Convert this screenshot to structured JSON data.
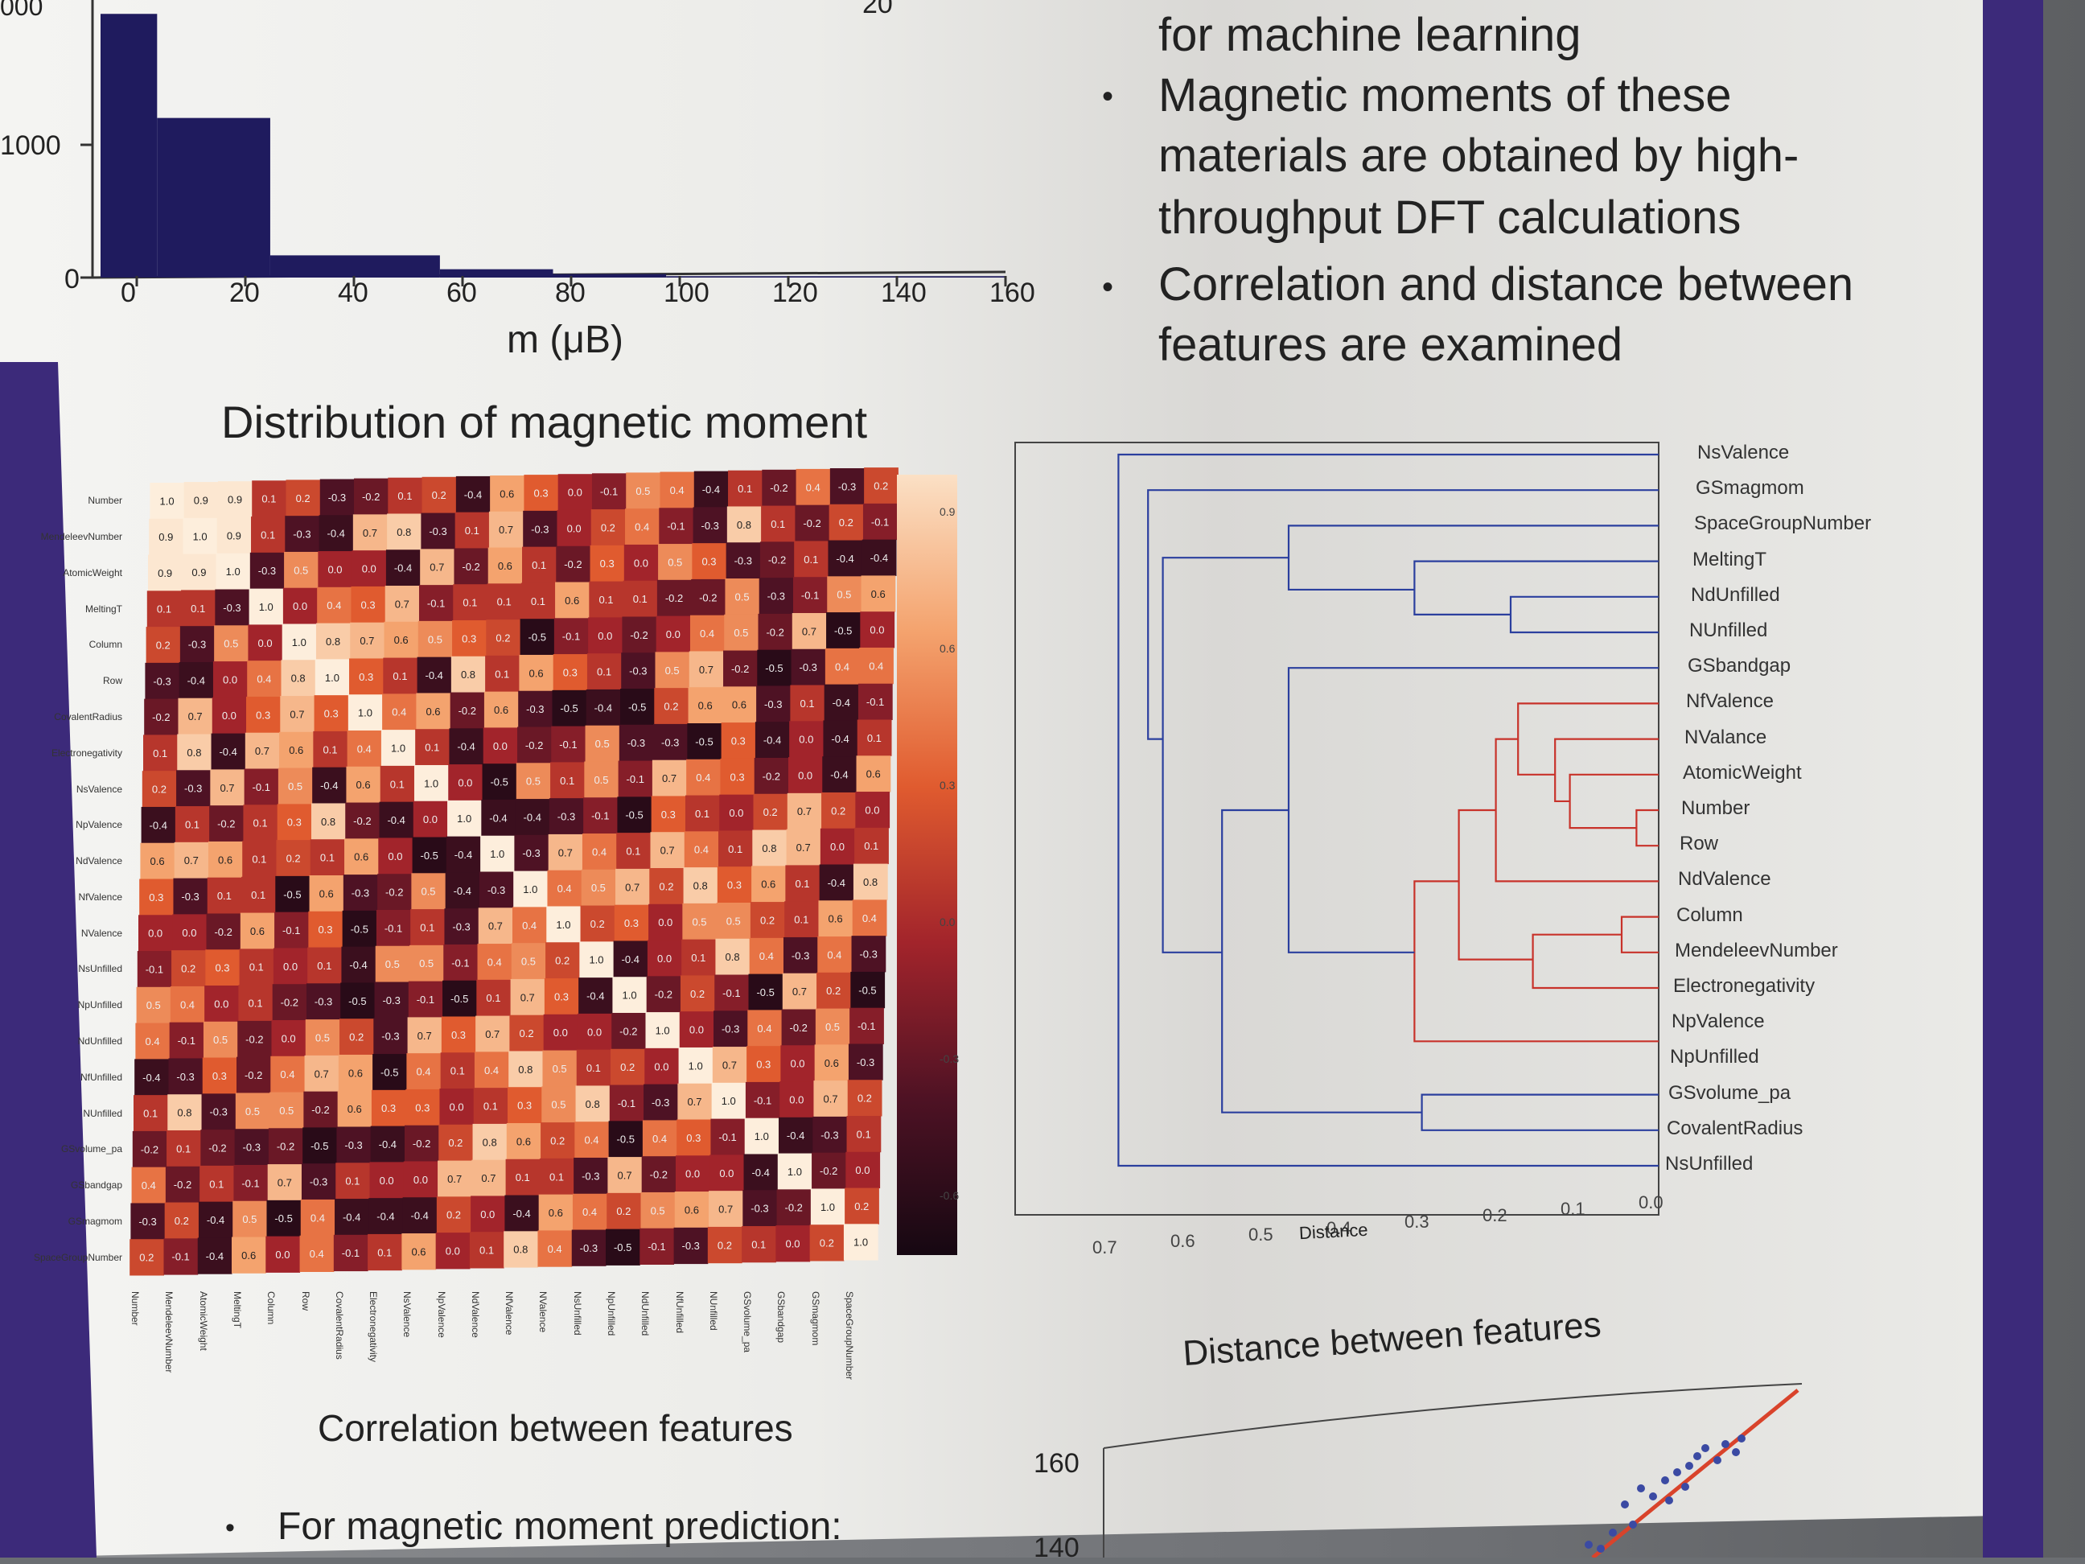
{
  "histogram": {
    "x_ticks": [
      "0",
      "20",
      "40",
      "60",
      "80",
      "100",
      "120",
      "140",
      "160"
    ],
    "y_ticks": [
      "1000",
      "0"
    ],
    "y_partial": "000",
    "legend_partial": "20",
    "xlabel": "m (μB)",
    "caption": "Distribution of magnetic moment"
  },
  "bullets_top": {
    "line0": "for machine learning",
    "b1_line1": "Magnetic moments of these",
    "b1_line2": "materials are obtained by high-",
    "b1_line3": "throughput DFT calculations",
    "b2_line1": "Correlation and distance between",
    "b2_line2": "features are examined"
  },
  "heatmap": {
    "caption": "Correlation between features",
    "row_labels": [
      "Number",
      "MendeleevNumber",
      "AtomicWeight",
      "MeltingT",
      "Column",
      "Row",
      "CovalentRadius",
      "Electronegativity",
      "NsValence",
      "NpValence",
      "NdValence",
      "NfValence",
      "NValence",
      "NsUnfilled",
      "NpUnfilled",
      "NdUnfilled",
      "NfUnfilled",
      "NUnfilled",
      "GSvolume_pa",
      "GSbandgap",
      "GSmagmom",
      "SpaceGroupNumber"
    ],
    "colorbar_ticks": [
      "0.9",
      "0.6",
      "0.3",
      "0.0",
      "-0.3",
      "-0.6"
    ]
  },
  "dendrogram": {
    "labels": [
      "NsValence",
      "GSmagmom",
      "SpaceGroupNumber",
      "MeltingT",
      "NdUnfilled",
      "NUnfilled",
      "GSbandgap",
      "NfValence",
      "NValance",
      "AtomicWeight",
      "Number",
      "Row",
      "NdValence",
      "Column",
      "MendeleevNumber",
      "Electronegativity",
      "NpValence",
      "NpUnfilled",
      "GSvolume_pa",
      "CovalentRadius",
      "NsUnfilled"
    ],
    "x_ticks": [
      "0.7",
      "0.6",
      "0.5",
      "0.4",
      "0.3",
      "0.2",
      "0.1",
      "0.0"
    ],
    "xlabel": "Distance",
    "caption": "Distance between features",
    "colors": {
      "blue": "#2b3f9e",
      "red": "#c8322a"
    }
  },
  "scatter": {
    "y_ticks": [
      "160",
      "140"
    ]
  },
  "bullets_bottom": {
    "line1": "For magnetic moment prediction:"
  },
  "chart_data": [
    {
      "type": "bar",
      "title": "Distribution of magnetic moment",
      "xlabel": "m (μB)",
      "ylabel": "",
      "categories": [
        "0-10",
        "10-30",
        "30-60",
        "60-80",
        "80-100",
        "100-160"
      ],
      "values": [
        1900,
        1150,
        160,
        60,
        25,
        10
      ],
      "xlim": [
        0,
        160
      ],
      "ylim": [
        0,
        2000
      ],
      "color": "#1f1b5e"
    },
    {
      "type": "heatmap",
      "title": "Correlation between features",
      "vmin": -0.6,
      "vmax": 0.9,
      "colormap": "dark-to-light (black, red, orange, peach)"
    },
    {
      "type": "scatter",
      "yticks": [
        140,
        160
      ],
      "fit_line_color": "#d9432b",
      "point_color": "#3b4aa3"
    }
  ]
}
